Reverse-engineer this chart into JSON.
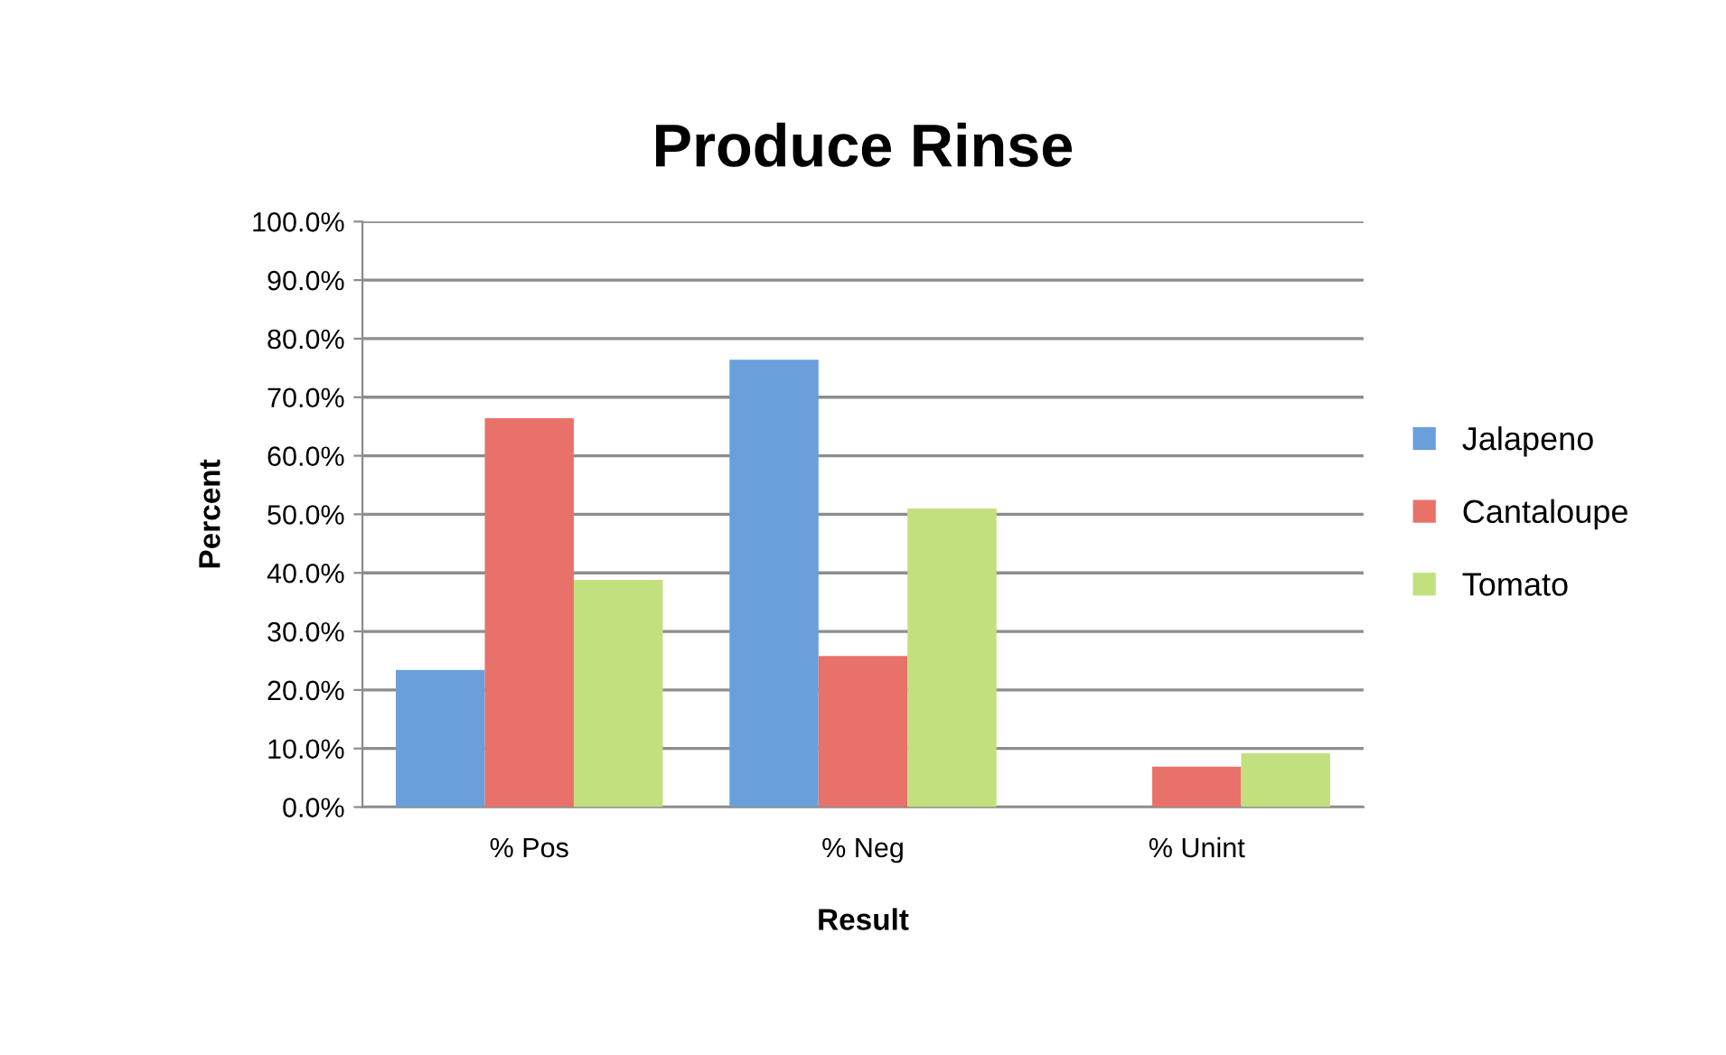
{
  "chart_data": {
    "type": "bar",
    "title": "Produce Rinse",
    "xlabel": "Result",
    "ylabel": "Percent",
    "categories": [
      "% Pos",
      "% Neg",
      "% Unint"
    ],
    "series": [
      {
        "name": "Jalapeno",
        "color": "#6a9fdc",
        "values": [
          23.4,
          76.4,
          0
        ]
      },
      {
        "name": "Cantaloupe",
        "color": "#e8726a",
        "values": [
          66.4,
          25.8,
          6.9
        ]
      },
      {
        "name": "Tomato",
        "color": "#c3e07e",
        "values": [
          38.8,
          51.0,
          9.2
        ]
      }
    ],
    "ylim": [
      0,
      100
    ],
    "yticks": [
      {
        "value": 0,
        "label": "0.0%"
      },
      {
        "value": 10,
        "label": "10.0%"
      },
      {
        "value": 20,
        "label": "20.0%"
      },
      {
        "value": 30,
        "label": "30.0%"
      },
      {
        "value": 40,
        "label": "40.0%"
      },
      {
        "value": 50,
        "label": "50.0%"
      },
      {
        "value": 60,
        "label": "60.0%"
      },
      {
        "value": 70,
        "label": "70.0%"
      },
      {
        "value": 80,
        "label": "80.0%"
      },
      {
        "value": 90,
        "label": "90.0%"
      },
      {
        "value": 100,
        "label": "100.0%"
      }
    ],
    "grid": "y",
    "legend": "right"
  }
}
